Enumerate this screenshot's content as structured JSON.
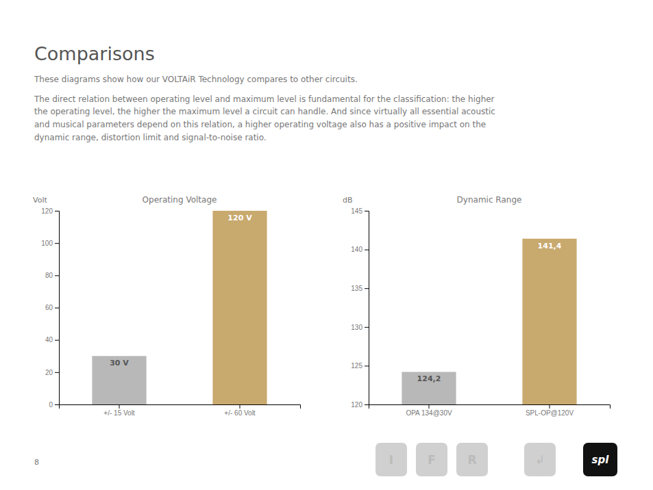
{
  "title": "Comparisons",
  "subtitle": [
    "These diagrams show how our VOLTAiR Technology compares to other circuits.",
    "The direct relation between operating level and maximum level is fundamental for the classification: the higher",
    "the operating level, the higher the maximum level a circuit can handle. And since virtually all essential acoustic",
    "and musical parameters depend on this relation, a higher operating voltage also has a positive impact on the",
    "dynamic range, distortion limit and signal-to-noise ratio."
  ],
  "annotations": [
    "8",
    "I",
    "F",
    "R",
    "↲",
    "spl"
  ],
  "chart_data": [
    {
      "type": "bar",
      "title": "Operating Voltage",
      "ylabel": "Volt",
      "categories": [
        "+/- 15 Volt",
        "+/- 60 Volt"
      ],
      "values": [
        30,
        120
      ],
      "value_labels": [
        "30 V",
        "120 V"
      ],
      "data_labels": true,
      "colors": [
        "#b8b8b8",
        "#c8a96e"
      ],
      "ylim": [
        0,
        120
      ],
      "yticks": [
        0,
        20,
        40,
        60,
        80,
        100,
        120
      ],
      "grid": false
    },
    {
      "type": "bar",
      "title": "Dynamic Range",
      "ylabel": "dB",
      "categories": [
        "OPA 134@30V",
        "SPL-OP@120V"
      ],
      "values": [
        124.2,
        141.4
      ],
      "value_labels": [
        "124,2",
        "141,4"
      ],
      "data_labels": true,
      "colors": [
        "#b8b8b8",
        "#c8a96e"
      ],
      "ylim": [
        120,
        145
      ],
      "yticks": [
        120,
        125,
        130,
        135,
        140,
        145
      ],
      "grid": false
    }
  ]
}
